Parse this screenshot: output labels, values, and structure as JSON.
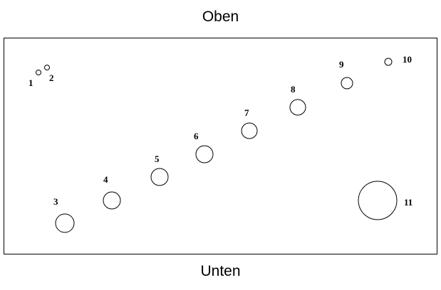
{
  "labels": {
    "top": "Oben",
    "bottom": "Unten"
  },
  "holes": [
    {
      "label": "1"
    },
    {
      "label": "2"
    },
    {
      "label": "3"
    },
    {
      "label": "4"
    },
    {
      "label": "5"
    },
    {
      "label": "6"
    },
    {
      "label": "7"
    },
    {
      "label": "8"
    },
    {
      "label": "9"
    },
    {
      "label": "10"
    },
    {
      "label": "11"
    }
  ]
}
